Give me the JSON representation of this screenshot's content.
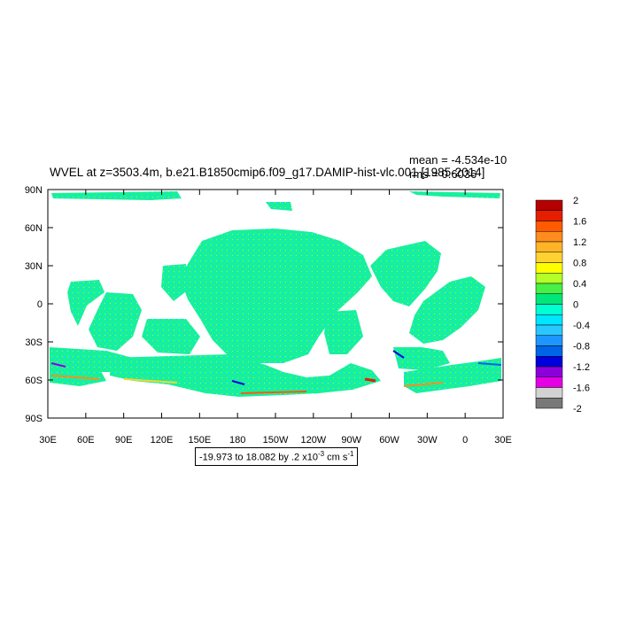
{
  "title": "WVEL at z=3503.4m, b.e21.B1850cmip6.f09_g17.DAMIP-hist-vlc.001 [1985-2014]",
  "stats": {
    "mean": "mean = -4.534e-10",
    "rms": "rms = 0.6036"
  },
  "lat_ticks": [
    "90N",
    "60N",
    "30N",
    "0",
    "30S",
    "60S",
    "90S"
  ],
  "lon_ticks": [
    "30E",
    "60E",
    "90E",
    "120E",
    "150E",
    "180",
    "150W",
    "120W",
    "90W",
    "60W",
    "30W",
    "0",
    "30E"
  ],
  "range_box": {
    "prefix": "-19.973 to 18.082 by .2 x10",
    "exponent": "-3",
    "units": "cm s",
    "units_exponent": "-1"
  },
  "colorbar": {
    "labels": [
      "2",
      "1.6",
      "1.2",
      "0.8",
      "0.4",
      "0",
      "-0.4",
      "-0.8",
      "-1.2",
      "-1.6",
      "-2"
    ],
    "colors": [
      "#b40000",
      "#e61e00",
      "#ff5a00",
      "#ff8c1e",
      "#ffb428",
      "#ffd232",
      "#ffff00",
      "#b4ff28",
      "#46f046",
      "#00e678",
      "#00ffd2",
      "#00e6ff",
      "#28c8ff",
      "#1e96ff",
      "#0064e6",
      "#0000dc",
      "#8c00dc",
      "#e600e6",
      "#d2d2d2",
      "#787878"
    ]
  },
  "map_colors": {
    "main": "#1ef08c",
    "cyan": "#00e6ff",
    "light": "#8cff64",
    "pos": "#ff5a00",
    "neg": "#0000dc"
  }
}
